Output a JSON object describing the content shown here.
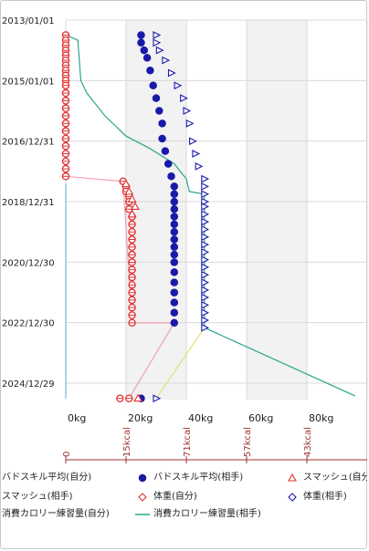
{
  "chart_data": {
    "type": "scatter",
    "orientation": "horizontal-values-vertical-dates",
    "y_axis": {
      "type": "date",
      "tick_labels": [
        "2013/01/01",
        "2015/01/01",
        "2016/12/31",
        "2018/12/31",
        "2020/12/30",
        "2022/12/30",
        "2024/12/29"
      ],
      "reversed": true
    },
    "x_axis": {
      "tick_labels": [
        "0kg",
        "20kg",
        "40kg",
        "60kg",
        "80kg"
      ],
      "range": [
        0,
        100
      ],
      "unit": "kg"
    },
    "x2_axis": {
      "tick_labels": [
        "0",
        "15kcal",
        "71kcal",
        "57kcal",
        "43kcal"
      ],
      "color": "#a03030"
    },
    "shaded_bands": [
      [
        20,
        40
      ],
      [
        60,
        80
      ]
    ],
    "legend": [
      {
        "label": "バドスキル平均(自分)",
        "marker": "triangle",
        "color": "#e03030"
      },
      {
        "label": "バドスキル平均(相手)",
        "marker": "circle",
        "color": "#1a1aa8"
      },
      {
        "label": "スマッシュ(自分)",
        "marker": "triangle",
        "color": "#e03030"
      },
      {
        "label": "スマッシュ(相手)",
        "marker": "diamond",
        "color": "#e03030"
      },
      {
        "label": "体重(自分)",
        "marker": "diamond",
        "color": "#e03030"
      },
      {
        "label": "体重(相手)",
        "marker": "diamond",
        "color": "#1a1aa8"
      },
      {
        "label": "消費カロリー練習量(自分)",
        "marker": "line",
        "color": "#6fb8e0"
      },
      {
        "label": "消費カロリー練習量(相手)",
        "marker": "line",
        "color": "#2aa58a"
      }
    ],
    "series": [
      {
        "name": "バドスキル平均(自分)",
        "marker": "circle",
        "color": "#e03030",
        "points": [
          {
            "x": 0,
            "y": "2013/07/01"
          },
          {
            "x": 0,
            "y": "2013/09/01"
          },
          {
            "x": 0,
            "y": "2013/11/01"
          },
          {
            "x": 0,
            "y": "2014/01/01"
          },
          {
            "x": 0,
            "y": "2014/03/01"
          },
          {
            "x": 0,
            "y": "2014/05/01"
          },
          {
            "x": 0,
            "y": "2014/07/01"
          },
          {
            "x": 0,
            "y": "2014/09/01"
          },
          {
            "x": 0,
            "y": "2014/11/01"
          },
          {
            "x": 0,
            "y": "2015/01/01"
          },
          {
            "x": 0,
            "y": "2015/03/01"
          },
          {
            "x": 0,
            "y": "2015/06/01"
          },
          {
            "x": 0,
            "y": "2015/09/01"
          },
          {
            "x": 0,
            "y": "2015/12/01"
          },
          {
            "x": 0,
            "y": "2016/03/01"
          },
          {
            "x": 0,
            "y": "2016/06/01"
          },
          {
            "x": 0,
            "y": "2016/09/01"
          },
          {
            "x": 0,
            "y": "2016/12/01"
          },
          {
            "x": 0,
            "y": "2017/03/01"
          },
          {
            "x": 0,
            "y": "2017/06/01"
          },
          {
            "x": 0,
            "y": "2017/09/01"
          },
          {
            "x": 0,
            "y": "2017/12/01"
          },
          {
            "x": 0,
            "y": "2018/03/01"
          },
          {
            "x": 19,
            "y": "2018/05/01"
          },
          {
            "x": 20,
            "y": "2018/07/01"
          },
          {
            "x": 20,
            "y": "2018/09/01"
          },
          {
            "x": 21,
            "y": "2018/11/01"
          },
          {
            "x": 21,
            "y": "2019/01/01"
          },
          {
            "x": 21,
            "y": "2019/04/01"
          },
          {
            "x": 22,
            "y": "2019/07/01"
          },
          {
            "x": 22,
            "y": "2019/10/01"
          },
          {
            "x": 22,
            "y": "2020/01/01"
          },
          {
            "x": 22,
            "y": "2020/04/01"
          },
          {
            "x": 22,
            "y": "2020/07/01"
          },
          {
            "x": 22,
            "y": "2020/10/01"
          },
          {
            "x": 22,
            "y": "2021/01/01"
          },
          {
            "x": 22,
            "y": "2021/04/01"
          },
          {
            "x": 22,
            "y": "2021/07/01"
          },
          {
            "x": 22,
            "y": "2021/10/01"
          },
          {
            "x": 22,
            "y": "2022/01/01"
          },
          {
            "x": 22,
            "y": "2022/04/01"
          },
          {
            "x": 22,
            "y": "2022/07/01"
          },
          {
            "x": 22,
            "y": "2022/10/01"
          },
          {
            "x": 22,
            "y": "2023/01/01"
          },
          {
            "x": 18,
            "y": "2025/07/01"
          },
          {
            "x": 21,
            "y": "2025/07/01"
          }
        ]
      },
      {
        "name": "バドスキル平均(相手)",
        "marker": "circle",
        "color": "#1a1aa8",
        "points": [
          {
            "x": 25,
            "y": "2013/07/01"
          },
          {
            "x": 25,
            "y": "2013/10/01"
          },
          {
            "x": 26,
            "y": "2014/01/01"
          },
          {
            "x": 27,
            "y": "2014/04/01"
          },
          {
            "x": 28,
            "y": "2014/09/01"
          },
          {
            "x": 29,
            "y": "2015/03/01"
          },
          {
            "x": 30,
            "y": "2015/08/01"
          },
          {
            "x": 31,
            "y": "2016/01/01"
          },
          {
            "x": 32,
            "y": "2016/06/01"
          },
          {
            "x": 32,
            "y": "2016/12/01"
          },
          {
            "x": 33,
            "y": "2017/05/01"
          },
          {
            "x": 34,
            "y": "2017/10/01"
          },
          {
            "x": 35,
            "y": "2018/03/01"
          },
          {
            "x": 36,
            "y": "2018/07/01"
          },
          {
            "x": 36,
            "y": "2018/10/01"
          },
          {
            "x": 36,
            "y": "2019/01/01"
          },
          {
            "x": 36,
            "y": "2019/04/01"
          },
          {
            "x": 36,
            "y": "2019/07/01"
          },
          {
            "x": 36,
            "y": "2019/10/01"
          },
          {
            "x": 36,
            "y": "2020/01/01"
          },
          {
            "x": 36,
            "y": "2020/04/01"
          },
          {
            "x": 36,
            "y": "2020/07/01"
          },
          {
            "x": 36,
            "y": "2020/10/01"
          },
          {
            "x": 36,
            "y": "2021/01/01"
          },
          {
            "x": 36,
            "y": "2021/05/01"
          },
          {
            "x": 36,
            "y": "2021/09/01"
          },
          {
            "x": 36,
            "y": "2022/01/01"
          },
          {
            "x": 36,
            "y": "2022/05/01"
          },
          {
            "x": 36,
            "y": "2022/09/01"
          },
          {
            "x": 36,
            "y": "2023/01/01"
          },
          {
            "x": 25,
            "y": "2025/07/01"
          }
        ]
      },
      {
        "name": "スマッシュ(相手)",
        "marker": "triangle-right",
        "color": "#1a1aa8",
        "points": [
          {
            "x": 30,
            "y": "2013/07/01"
          },
          {
            "x": 30,
            "y": "2013/10/01"
          },
          {
            "x": 31,
            "y": "2014/01/01"
          },
          {
            "x": 33,
            "y": "2014/05/01"
          },
          {
            "x": 35,
            "y": "2014/10/01"
          },
          {
            "x": 37,
            "y": "2015/03/01"
          },
          {
            "x": 39,
            "y": "2015/08/01"
          },
          {
            "x": 40,
            "y": "2016/01/01"
          },
          {
            "x": 41,
            "y": "2016/06/01"
          },
          {
            "x": 42,
            "y": "2017/01/01"
          },
          {
            "x": 43,
            "y": "2017/06/01"
          },
          {
            "x": 44,
            "y": "2017/11/01"
          },
          {
            "x": 46,
            "y": "2018/04/01"
          },
          {
            "x": 46,
            "y": "2018/07/01"
          },
          {
            "x": 46,
            "y": "2018/10/01"
          },
          {
            "x": 46,
            "y": "2019/01/01"
          },
          {
            "x": 46,
            "y": "2019/03/01"
          },
          {
            "x": 46,
            "y": "2019/06/01"
          },
          {
            "x": 46,
            "y": "2019/09/01"
          },
          {
            "x": 46,
            "y": "2019/12/01"
          },
          {
            "x": 46,
            "y": "2020/03/01"
          },
          {
            "x": 46,
            "y": "2020/06/01"
          },
          {
            "x": 46,
            "y": "2020/09/01"
          },
          {
            "x": 46,
            "y": "2020/12/01"
          },
          {
            "x": 46,
            "y": "2021/03/01"
          },
          {
            "x": 46,
            "y": "2021/06/01"
          },
          {
            "x": 46,
            "y": "2021/09/01"
          },
          {
            "x": 46,
            "y": "2021/12/01"
          },
          {
            "x": 46,
            "y": "2022/03/01"
          },
          {
            "x": 46,
            "y": "2022/06/01"
          },
          {
            "x": 46,
            "y": "2022/09/01"
          },
          {
            "x": 46,
            "y": "2022/12/01"
          },
          {
            "x": 46,
            "y": "2023/03/01"
          },
          {
            "x": 30,
            "y": "2025/07/01"
          }
        ]
      },
      {
        "name": "スマッシュ(自分)",
        "marker": "triangle",
        "color": "#e03030",
        "points": [
          {
            "x": 20,
            "y": "2018/06/01"
          },
          {
            "x": 21,
            "y": "2018/09/01"
          },
          {
            "x": 22,
            "y": "2018/12/01"
          },
          {
            "x": 23,
            "y": "2019/03/01"
          },
          {
            "x": 22,
            "y": "2019/06/01"
          },
          {
            "x": 24,
            "y": "2025/07/01"
          }
        ]
      }
    ],
    "lines": [
      {
        "name": "消費カロリー練習量(相手)",
        "color": "#2aa58a",
        "points": [
          {
            "x": 0,
            "y": "2013/07/01"
          },
          {
            "x": 4,
            "y": "2013/09/01"
          },
          {
            "x": 5,
            "y": "2015/01/01"
          },
          {
            "x": 7,
            "y": "2015/06/01"
          },
          {
            "x": 13,
            "y": "2016/03/01"
          },
          {
            "x": 20,
            "y": "2016/11/01"
          },
          {
            "x": 28,
            "y": "2017/04/01"
          },
          {
            "x": 36,
            "y": "2017/10/01"
          },
          {
            "x": 40,
            "y": "2018/04/01"
          },
          {
            "x": 41,
            "y": "2018/09/01"
          },
          {
            "x": 46,
            "y": "2018/10/01"
          },
          {
            "x": 46,
            "y": "2023/03/01"
          },
          {
            "x": 96,
            "y": "2025/06/01"
          }
        ]
      },
      {
        "name": "消費カロリー練習量(自分)",
        "color": "#6fb8e0",
        "points": [
          {
            "x": 0,
            "y": "2018/06/01"
          },
          {
            "x": 0,
            "y": "2025/07/01"
          }
        ]
      },
      {
        "name": "体重(自分)",
        "color": "#f0a0b0",
        "points": [
          {
            "x": 0,
            "y": "2018/03/01"
          },
          {
            "x": 19,
            "y": "2018/05/01"
          },
          {
            "x": 22,
            "y": "2023/01/01"
          },
          {
            "x": 36,
            "y": "2023/01/01"
          },
          {
            "x": 21,
            "y": "2025/07/01"
          }
        ]
      },
      {
        "name": "体重(相手)",
        "color": "#e6e070",
        "points": [
          {
            "x": 46,
            "y": "2023/03/01"
          },
          {
            "x": 30,
            "y": "2025/07/01"
          }
        ]
      }
    ]
  }
}
